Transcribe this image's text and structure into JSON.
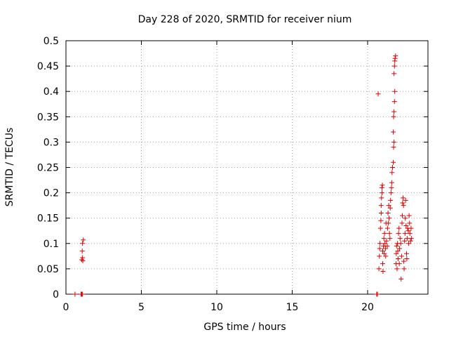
{
  "chart_data": {
    "type": "scatter",
    "title": "Day 228 of 2020, SRMTID for receiver nium",
    "xlabel": "GPS time / hours",
    "ylabel": "SRMTID / TECUs",
    "xlim": [
      0,
      24
    ],
    "ylim": [
      0,
      0.5
    ],
    "xticks": [
      0,
      5,
      10,
      15,
      20
    ],
    "xtick_labels": [
      "0",
      "5",
      "10",
      "15",
      "20"
    ],
    "yticks": [
      0,
      0.05,
      0.1,
      0.15,
      0.2,
      0.25,
      0.3,
      0.35,
      0.4,
      0.45,
      0.5
    ],
    "ytick_labels": [
      "0",
      "0.05",
      "0.1",
      "0.15",
      "0.2",
      "0.25",
      "0.3",
      "0.35",
      "0.4",
      "0.45",
      "0.5"
    ],
    "grid": true,
    "marker": "+",
    "color": "#e00000",
    "series": [
      {
        "name": "",
        "points": [
          [
            0.6,
            0
          ],
          [
            1.0,
            0
          ],
          [
            1.05,
            0
          ],
          [
            1.1,
            0
          ],
          [
            1.05,
            0.068
          ],
          [
            1.1,
            0.072
          ],
          [
            1.12,
            0.066
          ],
          [
            1.08,
            0.085
          ],
          [
            1.1,
            0.1
          ],
          [
            1.15,
            0.107
          ],
          [
            20.6,
            0
          ],
          [
            20.65,
            0
          ],
          [
            20.7,
            0.395
          ],
          [
            20.75,
            0.05
          ],
          [
            20.78,
            0.075
          ],
          [
            20.8,
            0.09
          ],
          [
            20.82,
            0.1
          ],
          [
            20.85,
            0.13
          ],
          [
            20.88,
            0.145
          ],
          [
            20.9,
            0.16
          ],
          [
            20.9,
            0.175
          ],
          [
            20.92,
            0.19
          ],
          [
            20.95,
            0.2
          ],
          [
            20.95,
            0.21
          ],
          [
            20.98,
            0.215
          ],
          [
            21.0,
            0.06
          ],
          [
            21.0,
            0.085
          ],
          [
            21.02,
            0.045
          ],
          [
            21.05,
            0.095
          ],
          [
            21.08,
            0.11
          ],
          [
            21.1,
            0.08
          ],
          [
            21.12,
            0.12
          ],
          [
            21.15,
            0.1
          ],
          [
            21.18,
            0.09
          ],
          [
            21.2,
            0.075
          ],
          [
            21.22,
            0.14
          ],
          [
            21.25,
            0.105
          ],
          [
            21.3,
            0.095
          ],
          [
            21.32,
            0.13
          ],
          [
            21.35,
            0.16
          ],
          [
            21.38,
            0.14
          ],
          [
            21.4,
            0.175
          ],
          [
            21.42,
            0.15
          ],
          [
            21.45,
            0.12
          ],
          [
            21.48,
            0.11
          ],
          [
            21.5,
            0.17
          ],
          [
            21.52,
            0.185
          ],
          [
            21.55,
            0.2
          ],
          [
            21.58,
            0.21
          ],
          [
            21.6,
            0.22
          ],
          [
            21.62,
            0.24
          ],
          [
            21.65,
            0.25
          ],
          [
            21.7,
            0.26
          ],
          [
            21.72,
            0.29
          ],
          [
            21.75,
            0.3
          ],
          [
            21.7,
            0.32
          ],
          [
            21.72,
            0.35
          ],
          [
            21.75,
            0.36
          ],
          [
            21.78,
            0.38
          ],
          [
            21.8,
            0.4
          ],
          [
            21.75,
            0.435
          ],
          [
            21.78,
            0.45
          ],
          [
            21.8,
            0.46
          ],
          [
            21.82,
            0.465
          ],
          [
            21.85,
            0.47
          ],
          [
            21.88,
            0.06
          ],
          [
            21.9,
            0.08
          ],
          [
            21.92,
            0.095
          ],
          [
            21.95,
            0.05
          ],
          [
            21.98,
            0.1
          ],
          [
            22.0,
            0.085
          ],
          [
            22.02,
            0.07
          ],
          [
            22.05,
            0.12
          ],
          [
            22.08,
            0.13
          ],
          [
            22.1,
            0.06
          ],
          [
            22.12,
            0.09
          ],
          [
            22.15,
            0.11
          ],
          [
            22.2,
            0.1
          ],
          [
            22.22,
            0.03
          ],
          [
            22.25,
            0.075
          ],
          [
            22.28,
            0.14
          ],
          [
            22.3,
            0.155
          ],
          [
            22.32,
            0.18
          ],
          [
            22.35,
            0.19
          ],
          [
            22.38,
            0.175
          ],
          [
            22.4,
            0.065
          ],
          [
            22.42,
            0.05
          ],
          [
            22.45,
            0.105
          ],
          [
            22.48,
            0.12
          ],
          [
            22.5,
            0.15
          ],
          [
            22.52,
            0.185
          ],
          [
            22.55,
            0.135
          ],
          [
            22.58,
            0.08
          ],
          [
            22.6,
            0.07
          ],
          [
            22.62,
            0.11
          ],
          [
            22.65,
            0.13
          ],
          [
            22.7,
            0.125
          ],
          [
            22.72,
            0.1
          ],
          [
            22.75,
            0.155
          ],
          [
            22.78,
            0.14
          ],
          [
            22.8,
            0.12
          ],
          [
            22.85,
            0.105
          ],
          [
            22.88,
            0.13
          ],
          [
            22.9,
            0.11
          ]
        ]
      }
    ]
  }
}
